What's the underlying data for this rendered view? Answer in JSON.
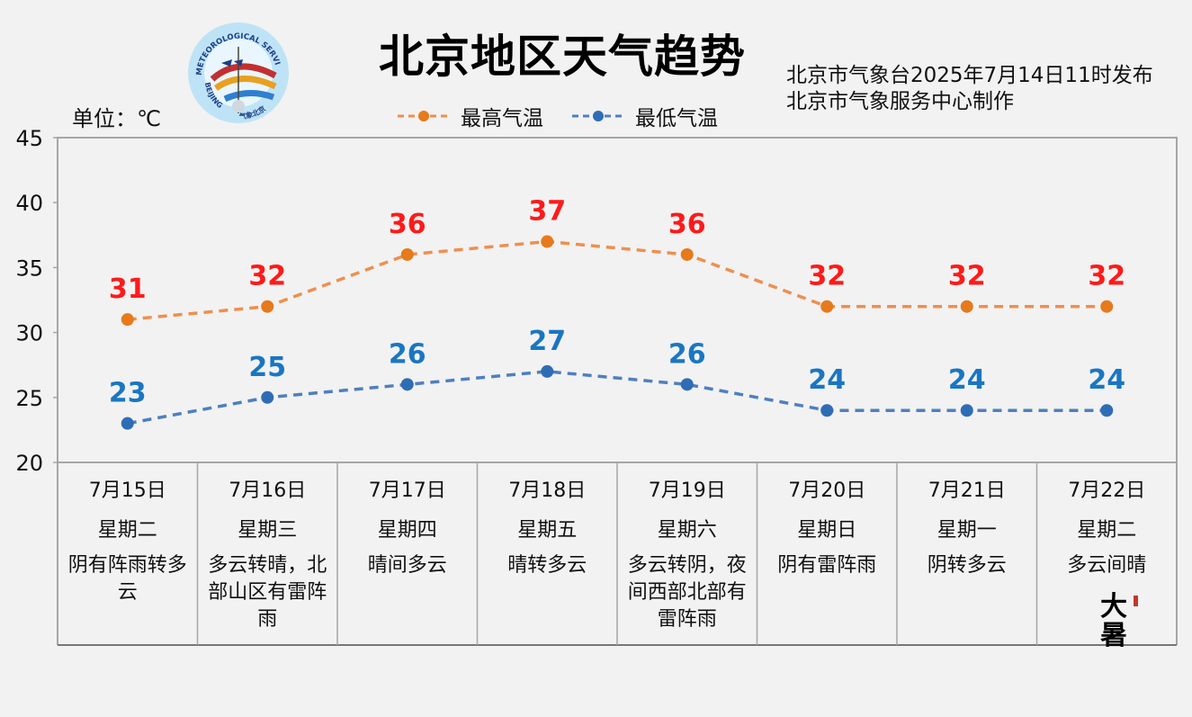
{
  "title": "北京地区天气趋势",
  "issuer": {
    "line1": "北京市气象台2025年7月14日11时发布",
    "line2": "北京市气象服务中心制作"
  },
  "unit_label": "单位：℃",
  "logo": {
    "text_top": "METEOROLOGICAL SERVICE",
    "text_left": "BEIJING",
    "text_bottom": "气象北京"
  },
  "solar_term": "大暑",
  "colors": {
    "high": "#ee8f4f",
    "high_point": "#e67a1c",
    "high_label": "#ff1a1a",
    "low": "#4f7fbf",
    "low_point": "#2e6db5",
    "low_label": "#1a76c2",
    "grid": "#a6a6a6",
    "bg": "#f2f2f2"
  },
  "chart_data": {
    "type": "line",
    "title": "北京地区天气趋势",
    "ylabel": "单位：℃",
    "ylim": [
      20,
      45
    ],
    "yticks": [
      "20",
      "25",
      "30",
      "35",
      "40",
      "45"
    ],
    "legend_position": "top",
    "grid": false,
    "categories": [
      "7月15日",
      "7月16日",
      "7月17日",
      "7月18日",
      "7月19日",
      "7月20日",
      "7月21日",
      "7月22日"
    ],
    "series": [
      {
        "name": "最高气温",
        "values": [
          31,
          32,
          36,
          37,
          36,
          32,
          32,
          32
        ],
        "labels": [
          "31",
          "32",
          "36",
          "37",
          "36",
          "32",
          "32",
          "32"
        ]
      },
      {
        "name": "最低气温",
        "values": [
          23,
          25,
          26,
          27,
          26,
          24,
          24,
          24
        ],
        "labels": [
          "23",
          "25",
          "26",
          "27",
          "26",
          "24",
          "24",
          "24"
        ]
      }
    ]
  },
  "days": [
    {
      "date": "7月15日",
      "weekday": "星期二",
      "weather": "阴有阵雨转多云"
    },
    {
      "date": "7月16日",
      "weekday": "星期三",
      "weather": "多云转晴，北部山区有雷阵雨"
    },
    {
      "date": "7月17日",
      "weekday": "星期四",
      "weather": "晴间多云"
    },
    {
      "date": "7月18日",
      "weekday": "星期五",
      "weather": "晴转多云"
    },
    {
      "date": "7月19日",
      "weekday": "星期六",
      "weather": "多云转阴，夜间西部北部有雷阵雨"
    },
    {
      "date": "7月20日",
      "weekday": "星期日",
      "weather": "阴有雷阵雨"
    },
    {
      "date": "7月21日",
      "weekday": "星期一",
      "weather": "阴转多云"
    },
    {
      "date": "7月22日",
      "weekday": "星期二",
      "weather": "多云间晴"
    }
  ]
}
